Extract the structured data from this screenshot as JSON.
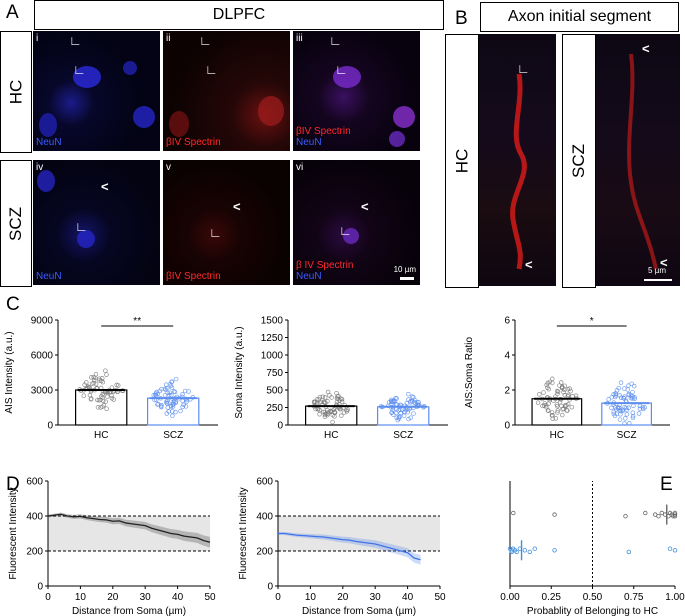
{
  "panel_letters": {
    "a": "A",
    "b": "B",
    "c": "C",
    "d": "D",
    "e": "E"
  },
  "panelA": {
    "title": "DLPFC",
    "rows": [
      "HC",
      "SCZ"
    ],
    "subpanels": [
      "i",
      "ii",
      "iii",
      "iv",
      "v",
      "vi"
    ],
    "labels": {
      "neun": "NeuN",
      "bivspectrin": "βIV Spectrin",
      "bivspectrin_spaced": "β IV Spectrin"
    },
    "scalebar": "10 µm",
    "colors": {
      "blue": "#3a5bff",
      "red": "#ff2a2a"
    }
  },
  "panelB": {
    "title": "Axon initial segment",
    "rows": [
      "HC",
      "SCZ"
    ],
    "scalebar": "5 µm"
  },
  "chart_data": [
    {
      "type": "bar",
      "ylabel": "AIS Intensity (a.u.)",
      "categories": [
        "HC",
        "SCZ"
      ],
      "values": [
        3000,
        2300
      ],
      "yticks": [
        "0",
        "3000",
        "6000",
        "9000"
      ],
      "ylim": [
        0,
        9000
      ],
      "significance": "**",
      "colors": [
        "#777777",
        "#5b8def"
      ]
    },
    {
      "type": "bar",
      "ylabel": "Soma Intensity (a.u.)",
      "categories": [
        "HC",
        "SCZ"
      ],
      "values": [
        270,
        260
      ],
      "yticks": [
        "0",
        "250",
        "500",
        "750",
        "1000",
        "1250",
        "1500"
      ],
      "ylim": [
        0,
        1500
      ],
      "colors": [
        "#777777",
        "#5b8def"
      ]
    },
    {
      "type": "bar",
      "ylabel": "AIS:Soma Ratio",
      "categories": [
        "HC",
        "SCZ"
      ],
      "values": [
        1.5,
        1.25
      ],
      "yticks": [
        "0",
        "2",
        "4",
        "6"
      ],
      "ylim": [
        0,
        6
      ],
      "significance": "*",
      "colors": [
        "#777777",
        "#5b8def"
      ]
    },
    {
      "type": "line",
      "xlabel": "Distance from Soma (µm)",
      "ylabel": "Fluorescent Intensity",
      "xticks": [
        "0",
        "10",
        "20",
        "30",
        "40",
        "50"
      ],
      "yticks": [
        "0",
        "200",
        "400",
        "600"
      ],
      "xlim": [
        0,
        50
      ],
      "ylim": [
        0,
        600
      ],
      "band": [
        200,
        400
      ],
      "x": [
        0,
        2,
        4,
        6,
        8,
        10,
        12,
        14,
        16,
        18,
        20,
        22,
        24,
        26,
        28,
        30,
        32,
        34,
        36,
        38,
        40,
        42,
        44,
        46,
        48,
        50
      ],
      "y": [
        400,
        405,
        410,
        400,
        395,
        398,
        390,
        385,
        380,
        378,
        370,
        372,
        360,
        355,
        350,
        345,
        330,
        320,
        310,
        300,
        295,
        285,
        280,
        275,
        260,
        250
      ],
      "color": "#222222"
    },
    {
      "type": "line",
      "xlabel": "Distance from Soma (µm)",
      "ylabel": "Fluorescent Intensity",
      "xticks": [
        "0",
        "10",
        "20",
        "30",
        "40",
        "50"
      ],
      "yticks": [
        "0",
        "200",
        "400",
        "600"
      ],
      "xlim": [
        0,
        50
      ],
      "ylim": [
        0,
        600
      ],
      "band": [
        200,
        400
      ],
      "x": [
        0,
        2,
        4,
        6,
        8,
        10,
        12,
        14,
        16,
        18,
        20,
        22,
        24,
        26,
        28,
        30,
        32,
        34,
        36,
        38,
        40,
        42,
        44
      ],
      "y": [
        300,
        300,
        295,
        290,
        288,
        285,
        282,
        280,
        275,
        270,
        265,
        262,
        255,
        250,
        245,
        240,
        230,
        220,
        210,
        200,
        190,
        160,
        150
      ],
      "color": "#3f74e8"
    },
    {
      "type": "scatter",
      "xlabel": "Probablity of Belonging to HC",
      "xticks": [
        "0.00",
        "0.25",
        "0.50",
        "0.75",
        "1.00"
      ],
      "xlim": [
        0,
        1
      ],
      "threshold": 0.5,
      "series": [
        {
          "group": "HC",
          "color": "#666666",
          "x": [
            0.02,
            0.27,
            0.7,
            0.82,
            0.88,
            0.9,
            0.92,
            0.94,
            0.96,
            0.97,
            0.98,
            0.99,
            1.0,
            1.0,
            1.0
          ]
        },
        {
          "group": "SCZ",
          "color": "#3f8fe0",
          "x": [
            0.0,
            0.01,
            0.01,
            0.02,
            0.03,
            0.04,
            0.06,
            0.09,
            0.12,
            0.15,
            0.27,
            0.72,
            0.97,
            1.0
          ]
        }
      ],
      "means": [
        0.95,
        0.07
      ]
    }
  ]
}
